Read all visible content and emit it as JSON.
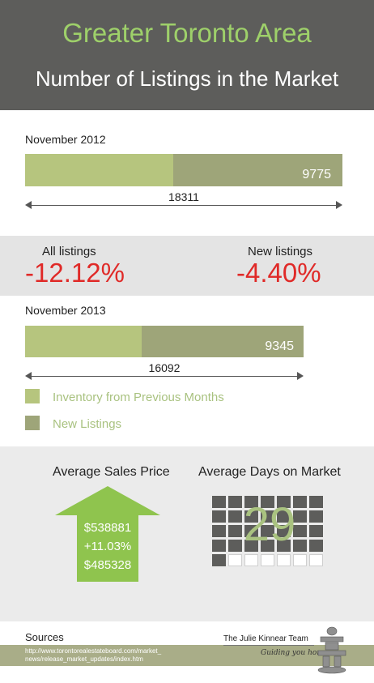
{
  "header": {
    "title": "Greater Toronto Area",
    "subtitle": "Number of Listings in the Market"
  },
  "colors": {
    "header_bg": "#5d5d5b",
    "title_green": "#9ed06a",
    "inventory_prev": "#b6c57e",
    "new_listings": "#9ea579",
    "negative_red": "#e02a28",
    "band_gray": "#e4e4e4"
  },
  "chart_data": [
    {
      "type": "bar",
      "period": "November  2012",
      "series": [
        {
          "name": "Inventory from Previous Months",
          "values": [
            8536
          ]
        },
        {
          "name": "New Listings",
          "values": [
            9775
          ]
        }
      ],
      "new_label": "9775",
      "total": 18311,
      "total_label": "18311"
    },
    {
      "type": "bar",
      "period": "November  2013",
      "series": [
        {
          "name": "Inventory from Previous Months",
          "values": [
            6747
          ]
        },
        {
          "name": "New Listings",
          "values": [
            9345
          ]
        }
      ],
      "new_label": "9345",
      "total": 16092,
      "total_label": "16092"
    }
  ],
  "change": {
    "all_label": "All listings",
    "all_value": "-12.12%",
    "new_label": "New listings",
    "new_value": "-4.40%"
  },
  "legend": {
    "inventory": "Inventory from Previous Months",
    "new": "New Listings"
  },
  "stats": {
    "price_heading": "Average Sales Price",
    "price_current": "$538881",
    "price_change": "+11.03%",
    "price_previous": "$485328",
    "days_heading": "Average Days on Market",
    "days_value": "29",
    "days_filled": 29,
    "days_total": 35
  },
  "footer": {
    "sources_title": "Sources",
    "url_line1": "http://www.torontorealestateboard.com/market_",
    "url_line2": "news/release_market_updates/index.htm",
    "brand": "The Julie Kinnear Team",
    "tagline": "Guiding you home"
  }
}
